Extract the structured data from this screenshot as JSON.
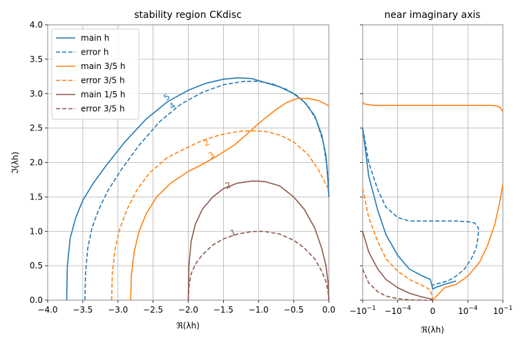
{
  "chart_data": [
    {
      "type": "line",
      "title": "stability region CKdisc",
      "xlabel": "ℜ(λh)",
      "ylabel": "ℑ(λh)",
      "xlim": [
        -4.0,
        0.0
      ],
      "ylim": [
        0.0,
        4.0
      ],
      "xticks": [
        -4.0,
        -3.5,
        -3.0,
        -2.5,
        -2.0,
        -1.5,
        -1.0,
        -0.5,
        0.0
      ],
      "xtick_labels": [
        "−4.0",
        "−3.5",
        "−3.0",
        "−2.5",
        "−2.0",
        "−1.5",
        "−1.0",
        "−0.5",
        "0.0"
      ],
      "yticks": [
        0.0,
        0.5,
        1.0,
        1.5,
        2.0,
        2.5,
        3.0,
        3.5,
        4.0
      ],
      "ytick_labels": [
        "0.0",
        "0.5",
        "1.0",
        "1.5",
        "2.0",
        "2.5",
        "3.0",
        "3.5",
        "4.0"
      ],
      "grid": true,
      "legend_position": "top-left",
      "series": [
        {
          "name": "main h",
          "color": "#1f77b4",
          "style": "solid",
          "x": [
            -3.73,
            -3.72,
            -3.68,
            -3.6,
            -3.5,
            -3.35,
            -3.15,
            -2.9,
            -2.6,
            -2.3,
            -2.0,
            -1.75,
            -1.5,
            -1.3,
            -1.1,
            -0.9,
            -0.7,
            -0.5,
            -0.35,
            -0.2,
            -0.1,
            -0.04,
            -0.01,
            0.0
          ],
          "y": [
            0.0,
            0.5,
            0.9,
            1.2,
            1.45,
            1.7,
            1.98,
            2.3,
            2.63,
            2.88,
            3.05,
            3.15,
            3.21,
            3.23,
            3.22,
            3.16,
            3.1,
            3.0,
            2.88,
            2.68,
            2.4,
            2.1,
            1.7,
            1.5
          ]
        },
        {
          "name": "error h",
          "color": "#1f77b4",
          "style": "dashed",
          "x": [
            -3.47,
            -3.46,
            -3.43,
            -3.37,
            -3.28,
            -3.15,
            -2.95,
            -2.7,
            -2.4,
            -2.1,
            -1.8,
            -1.5,
            -1.2,
            -1.0,
            -0.8,
            -0.6,
            -0.45,
            -0.3,
            -0.18,
            -0.08,
            -0.02,
            0.0
          ],
          "y": [
            0.0,
            0.4,
            0.75,
            1.05,
            1.3,
            1.58,
            1.9,
            2.25,
            2.6,
            2.85,
            3.02,
            3.13,
            3.18,
            3.18,
            3.14,
            3.06,
            2.97,
            2.83,
            2.62,
            2.3,
            1.9,
            1.5
          ]
        },
        {
          "name": "main 3/5 h",
          "color": "#ff7f0e",
          "style": "solid",
          "x": [
            -2.82,
            -2.81,
            -2.77,
            -2.7,
            -2.6,
            -2.45,
            -2.25,
            -2.0,
            -1.75,
            -1.55,
            -1.35,
            -1.2,
            -1.05,
            -0.9,
            -0.75,
            -0.6,
            -0.45,
            -0.3,
            -0.15,
            -0.05,
            0.0
          ],
          "y": [
            0.0,
            0.35,
            0.7,
            1.0,
            1.25,
            1.5,
            1.7,
            1.87,
            2.0,
            2.12,
            2.25,
            2.38,
            2.52,
            2.65,
            2.77,
            2.87,
            2.93,
            2.93,
            2.9,
            2.85,
            2.82
          ]
        },
        {
          "name": "error 3/5 h",
          "color": "#ff7f0e",
          "style": "dashed",
          "x": [
            -3.09,
            -3.08,
            -3.04,
            -2.97,
            -2.87,
            -2.73,
            -2.55,
            -2.3,
            -2.05,
            -1.8,
            -1.55,
            -1.3,
            -1.1,
            -0.9,
            -0.7,
            -0.5,
            -0.3,
            -0.15,
            -0.05,
            0.0
          ],
          "y": [
            0.0,
            0.4,
            0.75,
            1.05,
            1.32,
            1.6,
            1.85,
            2.07,
            2.2,
            2.32,
            2.4,
            2.45,
            2.46,
            2.45,
            2.4,
            2.3,
            2.12,
            1.9,
            1.7,
            1.6
          ]
        },
        {
          "name": "main 1/5 h",
          "color": "#8c564b",
          "style": "solid",
          "x": [
            -2.0,
            -1.99,
            -1.96,
            -1.9,
            -1.8,
            -1.65,
            -1.5,
            -1.3,
            -1.1,
            -1.0,
            -0.9,
            -0.7,
            -0.5,
            -0.35,
            -0.2,
            -0.1,
            -0.04,
            -0.01,
            0.0
          ],
          "y": [
            0.0,
            0.5,
            0.85,
            1.1,
            1.32,
            1.5,
            1.62,
            1.7,
            1.73,
            1.73,
            1.72,
            1.66,
            1.5,
            1.32,
            1.05,
            0.75,
            0.5,
            0.25,
            0.0
          ]
        },
        {
          "name": "error 3/5 h",
          "color": "#8c564b",
          "style": "dashed",
          "x": [
            -2.0,
            -1.99,
            -1.96,
            -1.9,
            -1.8,
            -1.65,
            -1.5,
            -1.3,
            -1.1,
            -1.0,
            -0.9,
            -0.7,
            -0.5,
            -0.35,
            -0.2,
            -0.1,
            -0.04,
            -0.01,
            0.0
          ],
          "y": [
            0.0,
            0.2,
            0.38,
            0.52,
            0.66,
            0.8,
            0.89,
            0.96,
            0.995,
            1.0,
            0.995,
            0.96,
            0.87,
            0.76,
            0.6,
            0.42,
            0.27,
            0.12,
            0.0
          ]
        }
      ],
      "annotations": [
        {
          "text": "5",
          "x": -2.28,
          "y": 2.92,
          "color": "#1f77b4",
          "rotate": -38
        },
        {
          "text": "4",
          "x": -2.2,
          "y": 2.79,
          "color": "#1f77b4",
          "rotate": -38
        },
        {
          "text": "2",
          "x": -1.72,
          "y": 2.25,
          "color": "#ff7f0e",
          "rotate": -30
        },
        {
          "text": "3",
          "x": -1.65,
          "y": 2.07,
          "color": "#ff7f0e",
          "rotate": -30
        },
        {
          "text": "2",
          "x": -1.42,
          "y": 1.63,
          "color": "#8c564b",
          "rotate": -22
        },
        {
          "text": "1",
          "x": -1.35,
          "y": 0.94,
          "color": "#8c564b",
          "rotate": -18
        }
      ]
    },
    {
      "type": "line",
      "title": "near imaginary axis",
      "xlabel": "ℜ(λh)",
      "ylabel": "",
      "xscale": "symlog",
      "xlim": [
        -0.1,
        0.1
      ],
      "ylim": [
        0.0,
        4.0
      ],
      "xticks": [
        -0.1,
        -0.0001,
        0.0,
        0.0001,
        0.1
      ],
      "xtick_labels": [
        "−10^−1",
        "−10^−4",
        "0",
        "10^−4",
        "10^−1"
      ],
      "grid": true,
      "series": [
        {
          "color": "#ff7f0e",
          "style": "solid",
          "x": [
            -0.1,
            -0.07,
            -0.03,
            -0.01,
            -0.001,
            0.0,
            0.001,
            0.01,
            0.03,
            0.06,
            0.1
          ],
          "y": [
            2.88,
            2.85,
            2.84,
            2.83,
            2.83,
            2.83,
            2.83,
            2.83,
            2.82,
            2.8,
            2.74
          ]
        },
        {
          "color": "#1f77b4",
          "style": "solid",
          "x": [
            -0.1,
            -0.03,
            -0.005,
            -0.001,
            -0.0001,
            -1e-05,
            -1e-06,
            -2e-07,
            0.0,
            2e-07,
            1e-06,
            1e-05
          ],
          "y": [
            2.5,
            1.8,
            1.3,
            0.95,
            0.65,
            0.45,
            0.36,
            0.3,
            0.16,
            0.18,
            0.23,
            0.28
          ]
        },
        {
          "color": "#1f77b4",
          "style": "dashed",
          "x": [
            -0.1,
            -0.03,
            -0.005,
            -0.001,
            -0.0001,
            -1e-05,
            0.0,
            1e-05,
            0.0001,
            0.0004,
            0.0008,
            0.0008,
            0.0007,
            0.0005,
            0.0002,
            5e-05,
            1e-05,
            2e-06,
            0.0
          ],
          "y": [
            2.5,
            2.0,
            1.6,
            1.35,
            1.2,
            1.15,
            1.15,
            1.15,
            1.14,
            1.12,
            1.05,
            0.98,
            0.88,
            0.75,
            0.6,
            0.45,
            0.35,
            0.28,
            0.22
          ]
        },
        {
          "color": "#ff7f0e",
          "style": "solid",
          "x": [
            0.0,
            1e-06,
            1e-05,
            0.0001,
            0.001,
            0.005,
            0.02,
            0.05,
            0.1
          ],
          "y": [
            0.0,
            0.18,
            0.23,
            0.35,
            0.55,
            0.8,
            1.1,
            1.4,
            1.68
          ]
        },
        {
          "color": "#ff7f0e",
          "style": "dashed",
          "x": [
            -0.1,
            -0.03,
            -0.005,
            -0.001,
            -0.0001,
            -1e-05,
            -1e-06,
            -2e-07,
            0.0
          ],
          "y": [
            1.62,
            1.2,
            0.85,
            0.6,
            0.42,
            0.3,
            0.22,
            0.15,
            0.0
          ]
        },
        {
          "color": "#8c564b",
          "style": "solid",
          "x": [
            -0.1,
            -0.03,
            -0.005,
            -0.001,
            -0.0001,
            -1e-05,
            -1e-06,
            -2e-07,
            0.0
          ],
          "y": [
            1.0,
            0.7,
            0.45,
            0.3,
            0.18,
            0.1,
            0.05,
            0.02,
            0.0
          ]
        },
        {
          "color": "#8c564b",
          "style": "dashed",
          "x": [
            -0.1,
            -0.03,
            -0.005,
            -0.001,
            -0.0001,
            -1e-05,
            -1e-06,
            0.0
          ],
          "y": [
            0.45,
            0.25,
            0.12,
            0.06,
            0.02,
            0.005,
            0.0,
            0.0
          ]
        }
      ]
    }
  ]
}
